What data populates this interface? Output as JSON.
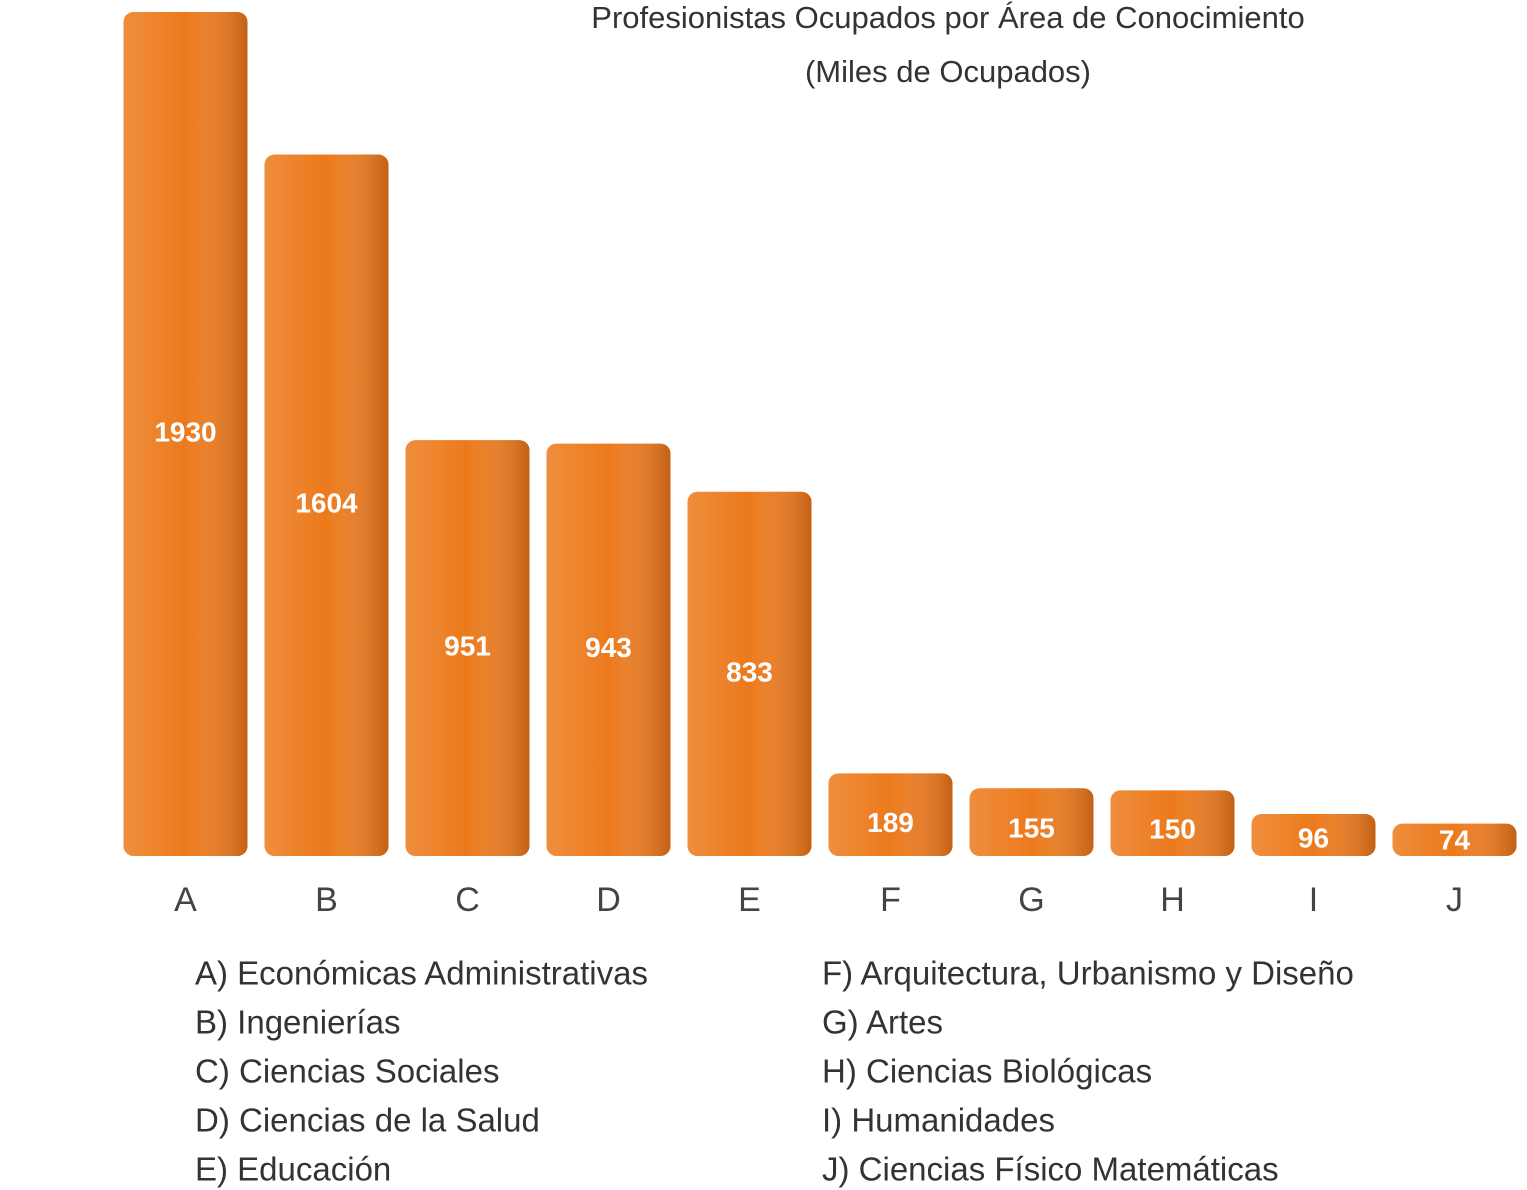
{
  "chart_data": {
    "type": "bar",
    "title": "Profesionistas Ocupados por Área de Conocimiento",
    "subtitle": "(Miles de Ocupados)",
    "categories": [
      "A",
      "B",
      "C",
      "D",
      "E",
      "F",
      "G",
      "H",
      "I",
      "J"
    ],
    "values": [
      1930,
      1604,
      951,
      943,
      833,
      189,
      155,
      150,
      96,
      74
    ],
    "color": "#ec7a1c",
    "legend_items": [
      "A) Económicas Administrativas",
      "B) Ingenierías",
      "C) Ciencias Sociales",
      "D) Ciencias de la Salud",
      "E) Educación",
      "F) Arquitectura, Urbanismo y Diseño",
      "G) Artes",
      "H) Ciencias Biológicas",
      "I) Humanidades",
      "J) Ciencias Físico Matemáticas"
    ]
  }
}
